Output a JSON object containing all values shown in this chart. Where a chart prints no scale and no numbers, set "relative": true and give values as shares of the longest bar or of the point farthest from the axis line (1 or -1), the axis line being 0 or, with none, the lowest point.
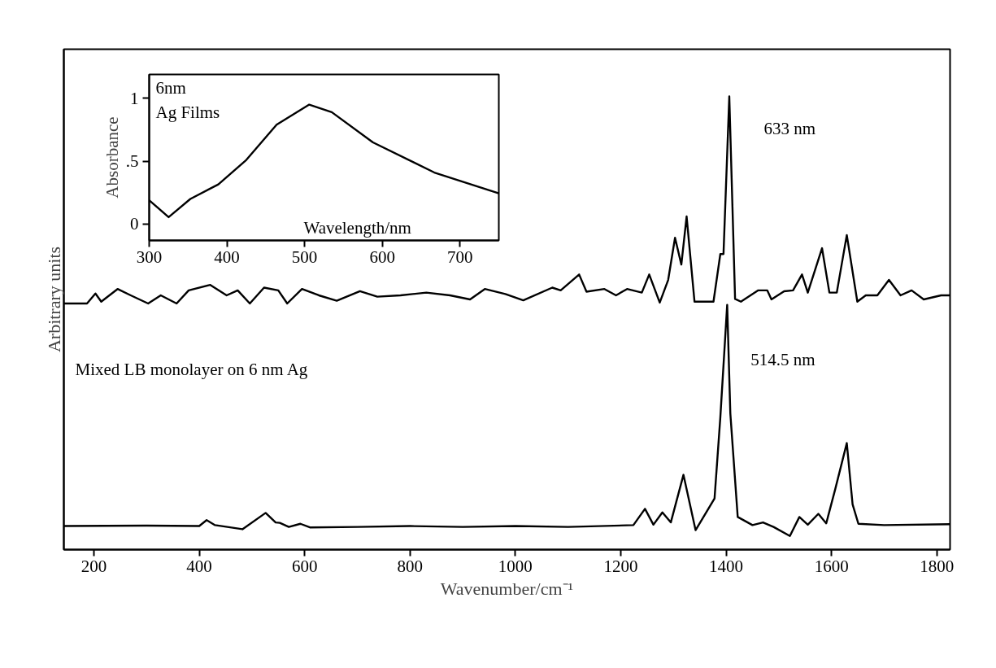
{
  "chart_data": [
    {
      "type": "line",
      "xlabel": "Wavenumber/cm⁻¹",
      "ylabel": "Arbitrary units",
      "relative": true,
      "xlim": [
        143,
        1825
      ],
      "xticks": [
        200,
        400,
        600,
        800,
        1000,
        1200,
        1400,
        1600,
        1800
      ],
      "grid": false,
      "tick_labels": "x",
      "annotations": [
        "Mixed LB monolayer on 6 nm Ag"
      ],
      "series": [
        {
          "name": "633 nm",
          "color": "#000000",
          "x": [
            143,
            187,
            203,
            214,
            245,
            270,
            303,
            327,
            357,
            380,
            421,
            452,
            473,
            496,
            523,
            550,
            567,
            595,
            627,
            661,
            705,
            738,
            782,
            831,
            876,
            914,
            942,
            981,
            1015,
            1070,
            1086,
            1121,
            1135,
            1169,
            1191,
            1212,
            1240,
            1254,
            1274,
            1290,
            1303,
            1315,
            1325,
            1340,
            1376,
            1389,
            1395,
            1406,
            1417,
            1428,
            1461,
            1478,
            1486,
            1510,
            1527,
            1544,
            1555,
            1582,
            1596,
            1610,
            1629,
            1649,
            1665,
            1687,
            1709,
            1731,
            1752,
            1775,
            1808,
            1825
          ],
          "values": [
            0.543,
            0.543,
            0.565,
            0.547,
            0.575,
            0.561,
            0.543,
            0.561,
            0.543,
            0.572,
            0.584,
            0.561,
            0.572,
            0.543,
            0.578,
            0.572,
            0.543,
            0.575,
            0.561,
            0.549,
            0.57,
            0.558,
            0.561,
            0.567,
            0.561,
            0.552,
            0.575,
            0.564,
            0.55,
            0.578,
            0.572,
            0.607,
            0.569,
            0.575,
            0.561,
            0.575,
            0.567,
            0.607,
            0.545,
            0.595,
            0.688,
            0.629,
            0.735,
            0.547,
            0.547,
            0.652,
            0.652,
            1.0,
            0.553,
            0.547,
            0.572,
            0.572,
            0.552,
            0.57,
            0.572,
            0.607,
            0.567,
            0.665,
            0.567,
            0.567,
            0.694,
            0.547,
            0.561,
            0.561,
            0.595,
            0.561,
            0.572,
            0.552,
            0.561,
            0.561
          ]
        },
        {
          "name": "514.5 nm",
          "color": "#000000",
          "x": [
            143,
            300,
            400,
            414,
            430,
            482,
            526,
            545,
            553,
            570,
            592,
            610,
            700,
            800,
            900,
            1000,
            1100,
            1224,
            1246,
            1262,
            1279,
            1295,
            1319,
            1342,
            1378,
            1389,
            1402,
            1408,
            1422,
            1450,
            1470,
            1490,
            1521,
            1539,
            1555,
            1575,
            1590,
            1607,
            1629,
            1640,
            1651,
            1700,
            1825
          ],
          "values": [
            0.052,
            0.053,
            0.052,
            0.065,
            0.054,
            0.045,
            0.081,
            0.06,
            0.059,
            0.05,
            0.057,
            0.049,
            0.05,
            0.052,
            0.05,
            0.052,
            0.05,
            0.054,
            0.09,
            0.055,
            0.082,
            0.06,
            0.165,
            0.043,
            0.113,
            0.292,
            0.54,
            0.3,
            0.072,
            0.054,
            0.06,
            0.05,
            0.03,
            0.072,
            0.055,
            0.079,
            0.058,
            0.133,
            0.235,
            0.1,
            0.057,
            0.054,
            0.056
          ]
        }
      ]
    },
    {
      "type": "line",
      "xlabel": "Wavelength/nm",
      "ylabel": "Absorbance",
      "xlim": [
        300,
        750
      ],
      "ylim": [
        -0.13,
        1.19
      ],
      "xticks": [
        300,
        400,
        500,
        600,
        700
      ],
      "yticks": [
        0,
        {
          "value": 0.5,
          "label": ".5"
        },
        1
      ],
      "grid": false,
      "annotations": [
        "6nm",
        "Ag Films"
      ],
      "series": [
        {
          "color": "#000000",
          "x": [
            300,
            325,
            353,
            389,
            425,
            464,
            506,
            535,
            588,
            667,
            750
          ],
          "values": [
            0.19,
            0.055,
            0.2,
            0.316,
            0.51,
            0.79,
            0.95,
            0.89,
            0.65,
            0.41,
            0.245
          ]
        }
      ]
    }
  ]
}
